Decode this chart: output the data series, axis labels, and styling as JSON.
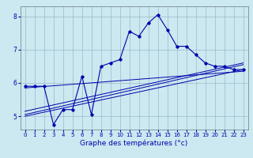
{
  "xlabel": "Graphe des températures (°c)",
  "background_color": "#cce8f0",
  "line_color": "#0000aa",
  "grid_color": "#99bbcc",
  "xlim": [
    -0.5,
    23.5
  ],
  "ylim": [
    4.6,
    8.3
  ],
  "xticks": [
    0,
    1,
    2,
    3,
    4,
    5,
    6,
    7,
    8,
    9,
    10,
    11,
    12,
    13,
    14,
    15,
    16,
    17,
    18,
    19,
    20,
    21,
    22,
    23
  ],
  "yticks": [
    5,
    6,
    7,
    8
  ],
  "main_line": {
    "x": [
      0,
      1,
      2,
      3,
      4,
      5,
      6,
      7,
      8,
      9,
      10,
      11,
      12,
      13,
      14,
      15,
      16,
      17,
      18,
      19,
      20,
      21,
      22,
      23
    ],
    "y": [
      5.9,
      5.9,
      5.9,
      4.75,
      5.2,
      5.2,
      6.2,
      5.05,
      6.5,
      6.6,
      6.7,
      7.55,
      7.4,
      7.8,
      8.05,
      7.6,
      7.1,
      7.1,
      6.85,
      6.6,
      6.5,
      6.5,
      6.4,
      6.4
    ]
  },
  "trend_lines": [
    {
      "x": [
        0,
        23
      ],
      "y": [
        5.85,
        6.35
      ]
    },
    {
      "x": [
        0,
        23
      ],
      "y": [
        5.0,
        6.4
      ]
    },
    {
      "x": [
        0,
        23
      ],
      "y": [
        5.05,
        6.55
      ]
    },
    {
      "x": [
        0,
        23
      ],
      "y": [
        5.15,
        6.6
      ]
    }
  ],
  "xlabel_fontsize": 6.5,
  "tick_fontsize": 5.0
}
